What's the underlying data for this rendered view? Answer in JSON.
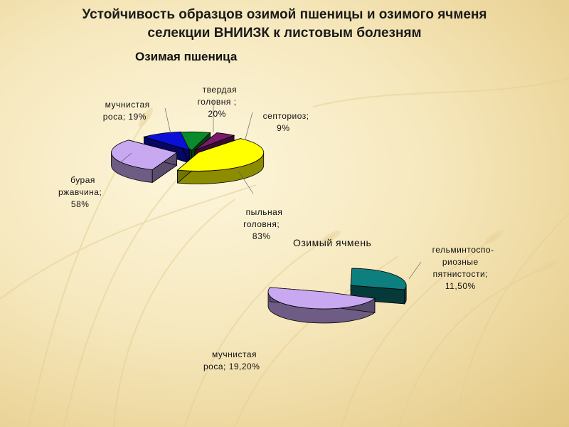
{
  "title_line1": "Устойчивость образцов озимой пшеницы и озимого ячменя",
  "title_line2": "селекции ВНИИЗК к листовым болезням",
  "chart_data": [
    {
      "type": "pie",
      "title": "Озимая пшеница",
      "slices": [
        {
          "name": "твердая головня",
          "label": "твердая\nголовня ;",
          "value": 20,
          "value_label": "20%",
          "color": "#0a8a2a"
        },
        {
          "name": "септориоз",
          "label": "септориоз;",
          "value": 9,
          "value_label": "9%",
          "color": "#7a1a6a"
        },
        {
          "name": "пыльная головня",
          "label": "пыльная\nголовня;",
          "value": 83,
          "value_label": "83%",
          "color": "#ffff00"
        },
        {
          "name": "бурая ржавчина",
          "label": "бурая\nржавчина;",
          "value": 58,
          "value_label": "58%",
          "color": "#c8a8f0"
        },
        {
          "name": "мучнистая роса",
          "label": "мучнистая\nроса;",
          "value": 19,
          "value_label": "19%",
          "color": "#0a10d8"
        }
      ]
    },
    {
      "type": "pie",
      "title": "Озимый ячмень",
      "slices": [
        {
          "name": "гельминтоспориозные пятнистости",
          "label": "гельминтоспо-\nриозные\nпятнистости;",
          "value": 11.5,
          "value_label": "11,50%",
          "color": "#0d7f7f"
        },
        {
          "name": "мучнистая роса",
          "label": "мучнистая\nроса;",
          "value": 19.2,
          "value_label": "19,20%",
          "color": "#c8a8f0"
        }
      ]
    }
  ]
}
